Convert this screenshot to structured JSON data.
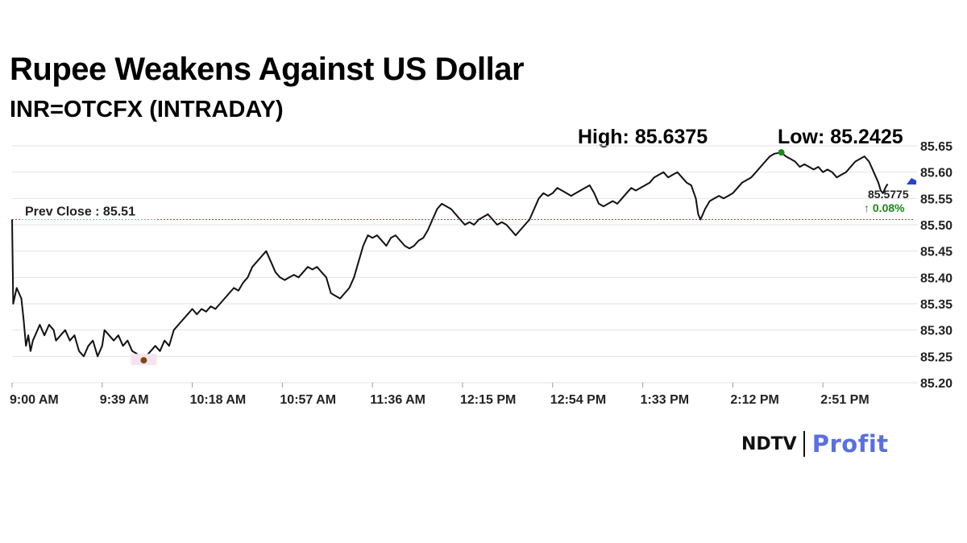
{
  "header": {
    "title": "Rupee Weakens Against US Dollar",
    "subtitle": "INR=OTCFX (INTRADAY)",
    "high_label": "High: 85.6375",
    "low_label": "Low: 85.2425"
  },
  "logo": {
    "ndtv": "NDTV",
    "profit": "Profit"
  },
  "chart_data": {
    "type": "line",
    "title": "Rupee Weakens Against US Dollar",
    "subtitle": "INR=OTCFX (INTRADAY)",
    "x_tick_labels": [
      "9:00 AM",
      "9:39 AM",
      "10:18 AM",
      "10:57 AM",
      "11:36 AM",
      "12:15 PM",
      "12:54 PM",
      "1:33 PM",
      "2:12 PM",
      "2:51 PM"
    ],
    "x_tick_minutes": [
      0,
      39,
      78,
      117,
      156,
      195,
      234,
      273,
      312,
      351
    ],
    "x_range_minutes": [
      0,
      390
    ],
    "y_ticks": [
      85.2,
      85.25,
      85.3,
      85.35,
      85.4,
      85.45,
      85.5,
      85.55,
      85.6,
      85.65
    ],
    "ylim": [
      85.2,
      85.65
    ],
    "grid": "horizontal",
    "prev_close": {
      "label": "Prev Close : 85.51",
      "value": 85.51,
      "color": "#e03030"
    },
    "last": {
      "value_label": "85.5775",
      "change_label": "↑ 0.08%",
      "change_color": "#1a8a1a"
    },
    "high_point": {
      "minute": 333,
      "value": 85.6375,
      "color": "#1a8a1a"
    },
    "low_point": {
      "minute": 57,
      "value": 85.2425,
      "color": "#7a4a10"
    },
    "series": [
      {
        "points": [
          [
            0,
            85.51
          ],
          [
            0.5,
            85.35
          ],
          [
            2,
            85.38
          ],
          [
            4,
            85.36
          ],
          [
            5,
            85.32
          ],
          [
            6,
            85.27
          ],
          [
            7,
            85.29
          ],
          [
            8,
            85.26
          ],
          [
            9,
            85.28
          ],
          [
            10,
            85.29
          ],
          [
            12,
            85.31
          ],
          [
            14,
            85.29
          ],
          [
            16,
            85.31
          ],
          [
            18,
            85.3
          ],
          [
            19,
            85.28
          ],
          [
            21,
            85.29
          ],
          [
            23,
            85.3
          ],
          [
            25,
            85.28
          ],
          [
            27,
            85.29
          ],
          [
            29,
            85.26
          ],
          [
            31,
            85.25
          ],
          [
            33,
            85.27
          ],
          [
            35,
            85.28
          ],
          [
            37,
            85.25
          ],
          [
            39,
            85.27
          ],
          [
            40,
            85.3
          ],
          [
            42,
            85.29
          ],
          [
            44,
            85.28
          ],
          [
            46,
            85.29
          ],
          [
            48,
            85.27
          ],
          [
            50,
            85.28
          ],
          [
            52,
            85.26
          ],
          [
            54,
            85.255
          ],
          [
            56,
            85.245
          ],
          [
            57,
            85.2425
          ],
          [
            58,
            85.25
          ],
          [
            60,
            85.26
          ],
          [
            62,
            85.27
          ],
          [
            64,
            85.26
          ],
          [
            66,
            85.28
          ],
          [
            68,
            85.27
          ],
          [
            70,
            85.3
          ],
          [
            72,
            85.31
          ],
          [
            74,
            85.32
          ],
          [
            76,
            85.33
          ],
          [
            78,
            85.34
          ],
          [
            80,
            85.33
          ],
          [
            82,
            85.34
          ],
          [
            84,
            85.335
          ],
          [
            86,
            85.345
          ],
          [
            88,
            85.34
          ],
          [
            90,
            85.35
          ],
          [
            92,
            85.36
          ],
          [
            94,
            85.37
          ],
          [
            96,
            85.38
          ],
          [
            98,
            85.375
          ],
          [
            100,
            85.39
          ],
          [
            102,
            85.4
          ],
          [
            104,
            85.42
          ],
          [
            106,
            85.43
          ],
          [
            108,
            85.44
          ],
          [
            110,
            85.45
          ],
          [
            112,
            85.43
          ],
          [
            114,
            85.41
          ],
          [
            116,
            85.4
          ],
          [
            118,
            85.395
          ],
          [
            120,
            85.4
          ],
          [
            122,
            85.405
          ],
          [
            124,
            85.4
          ],
          [
            126,
            85.41
          ],
          [
            128,
            85.42
          ],
          [
            130,
            85.415
          ],
          [
            132,
            85.42
          ],
          [
            134,
            85.41
          ],
          [
            136,
            85.4
          ],
          [
            138,
            85.37
          ],
          [
            140,
            85.365
          ],
          [
            142,
            85.36
          ],
          [
            144,
            85.37
          ],
          [
            146,
            85.38
          ],
          [
            148,
            85.4
          ],
          [
            150,
            85.43
          ],
          [
            152,
            85.46
          ],
          [
            154,
            85.48
          ],
          [
            156,
            85.475
          ],
          [
            158,
            85.48
          ],
          [
            160,
            85.47
          ],
          [
            162,
            85.46
          ],
          [
            164,
            85.475
          ],
          [
            166,
            85.48
          ],
          [
            168,
            85.47
          ],
          [
            170,
            85.46
          ],
          [
            172,
            85.455
          ],
          [
            174,
            85.46
          ],
          [
            176,
            85.47
          ],
          [
            178,
            85.475
          ],
          [
            180,
            85.49
          ],
          [
            182,
            85.51
          ],
          [
            184,
            85.53
          ],
          [
            186,
            85.54
          ],
          [
            188,
            85.535
          ],
          [
            190,
            85.53
          ],
          [
            192,
            85.52
          ],
          [
            194,
            85.51
          ],
          [
            196,
            85.5
          ],
          [
            198,
            85.505
          ],
          [
            200,
            85.5
          ],
          [
            202,
            85.51
          ],
          [
            204,
            85.515
          ],
          [
            206,
            85.52
          ],
          [
            208,
            85.51
          ],
          [
            210,
            85.5
          ],
          [
            212,
            85.505
          ],
          [
            214,
            85.5
          ],
          [
            216,
            85.49
          ],
          [
            218,
            85.48
          ],
          [
            220,
            85.49
          ],
          [
            222,
            85.5
          ],
          [
            224,
            85.51
          ],
          [
            226,
            85.53
          ],
          [
            228,
            85.55
          ],
          [
            230,
            85.56
          ],
          [
            232,
            85.555
          ],
          [
            234,
            85.56
          ],
          [
            236,
            85.57
          ],
          [
            238,
            85.565
          ],
          [
            240,
            85.56
          ],
          [
            242,
            85.555
          ],
          [
            244,
            85.56
          ],
          [
            246,
            85.565
          ],
          [
            248,
            85.57
          ],
          [
            250,
            85.575
          ],
          [
            252,
            85.56
          ],
          [
            254,
            85.54
          ],
          [
            256,
            85.535
          ],
          [
            258,
            85.54
          ],
          [
            260,
            85.545
          ],
          [
            262,
            85.54
          ],
          [
            264,
            85.55
          ],
          [
            266,
            85.56
          ],
          [
            268,
            85.57
          ],
          [
            270,
            85.565
          ],
          [
            272,
            85.57
          ],
          [
            274,
            85.575
          ],
          [
            276,
            85.58
          ],
          [
            278,
            85.59
          ],
          [
            280,
            85.595
          ],
          [
            282,
            85.6
          ],
          [
            284,
            85.59
          ],
          [
            286,
            85.595
          ],
          [
            288,
            85.6
          ],
          [
            290,
            85.59
          ],
          [
            292,
            85.58
          ],
          [
            294,
            85.575
          ],
          [
            296,
            85.55
          ],
          [
            297,
            85.52
          ],
          [
            298,
            85.51
          ],
          [
            300,
            85.53
          ],
          [
            302,
            85.545
          ],
          [
            304,
            85.55
          ],
          [
            306,
            85.555
          ],
          [
            308,
            85.55
          ],
          [
            310,
            85.555
          ],
          [
            312,
            85.56
          ],
          [
            314,
            85.57
          ],
          [
            316,
            85.58
          ],
          [
            318,
            85.585
          ],
          [
            320,
            85.59
          ],
          [
            322,
            85.6
          ],
          [
            324,
            85.61
          ],
          [
            326,
            85.62
          ],
          [
            328,
            85.63
          ],
          [
            330,
            85.635
          ],
          [
            333,
            85.6375
          ],
          [
            335,
            85.63
          ],
          [
            337,
            85.625
          ],
          [
            339,
            85.62
          ],
          [
            341,
            85.61
          ],
          [
            343,
            85.615
          ],
          [
            345,
            85.61
          ],
          [
            347,
            85.605
          ],
          [
            349,
            85.61
          ],
          [
            351,
            85.6
          ],
          [
            353,
            85.605
          ],
          [
            355,
            85.6
          ],
          [
            357,
            85.59
          ],
          [
            359,
            85.595
          ],
          [
            361,
            85.6
          ],
          [
            363,
            85.61
          ],
          [
            365,
            85.62
          ],
          [
            367,
            85.625
          ],
          [
            369,
            85.63
          ],
          [
            371,
            85.62
          ],
          [
            373,
            85.6
          ],
          [
            375,
            85.58
          ],
          [
            376,
            85.565
          ],
          [
            377,
            85.56
          ],
          [
            378,
            85.57
          ],
          [
            379,
            85.5775
          ]
        ]
      }
    ]
  }
}
